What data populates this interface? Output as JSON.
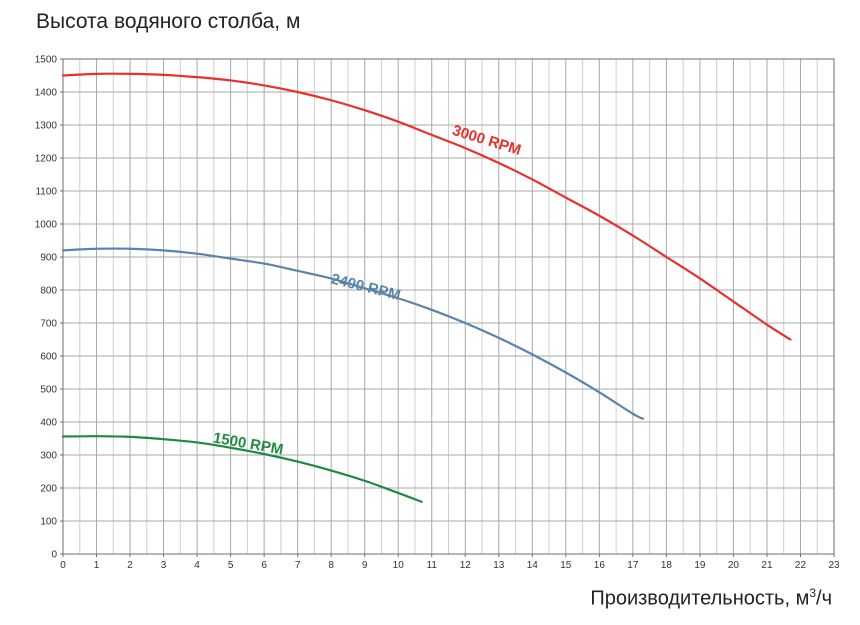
{
  "chart_data": {
    "type": "line",
    "ylabel": "Высота водяного столба, м",
    "xlabel_main": "Производительность, м",
    "xlabel_sup": "3",
    "xlabel_tail": "/ч",
    "xlim": [
      0,
      23
    ],
    "ylim": [
      0,
      1500
    ],
    "xticks": [
      0,
      1,
      2,
      3,
      4,
      5,
      6,
      7,
      8,
      9,
      10,
      11,
      12,
      13,
      14,
      15,
      16,
      17,
      18,
      19,
      20,
      21,
      22,
      23
    ],
    "yticks": [
      0,
      100,
      200,
      300,
      400,
      500,
      600,
      700,
      800,
      900,
      1000,
      1100,
      1200,
      1300,
      1400,
      1500
    ],
    "grid": true,
    "series": [
      {
        "name": "3000 RPM",
        "color": "#e8302f",
        "x": [
          0,
          1,
          2,
          3,
          4,
          5,
          6,
          7,
          8,
          9,
          10,
          11,
          12,
          13,
          14,
          15,
          16,
          17,
          18,
          19,
          20,
          21,
          21.7
        ],
        "y": [
          1450,
          1455,
          1455,
          1452,
          1445,
          1435,
          1420,
          1400,
          1375,
          1345,
          1310,
          1270,
          1230,
          1185,
          1135,
          1080,
          1025,
          965,
          900,
          835,
          765,
          695,
          650
        ]
      },
      {
        "name": "2400 RPM",
        "color": "#5a84ab",
        "x": [
          0,
          1,
          2,
          3,
          4,
          5,
          6,
          7,
          8,
          9,
          10,
          11,
          12,
          13,
          14,
          15,
          16,
          17,
          17.3
        ],
        "y": [
          920,
          925,
          925,
          920,
          910,
          895,
          880,
          858,
          835,
          805,
          775,
          740,
          700,
          655,
          605,
          550,
          490,
          425,
          410
        ]
      },
      {
        "name": "1500 RPM",
        "color": "#1f8b40",
        "x": [
          0,
          1,
          2,
          3,
          4,
          5,
          6,
          7,
          8,
          9,
          10,
          10.7
        ],
        "y": [
          356,
          357,
          355,
          348,
          338,
          322,
          303,
          280,
          253,
          222,
          185,
          158
        ]
      }
    ]
  }
}
